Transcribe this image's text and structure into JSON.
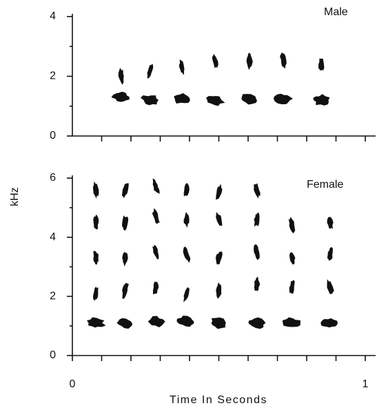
{
  "chart_data": [
    {
      "type": "spectrogram",
      "title": "Male",
      "ylabel": "kHz",
      "xlim": [
        0,
        1
      ],
      "ylim": [
        0,
        4
      ],
      "yticks": [
        0,
        2,
        4
      ],
      "yminor_ticks": [
        1,
        3
      ],
      "xminor_ticks": [
        0.1,
        0.2,
        0.3,
        0.4,
        0.5,
        0.6,
        0.7,
        0.8,
        0.9,
        1
      ],
      "x": [
        0.167,
        0.266,
        0.374,
        0.487,
        0.605,
        0.72,
        0.85
      ],
      "series": [
        {
          "color": "#111111",
          "values": [
            1.3,
            1.2,
            1.25,
            1.2,
            1.25,
            1.25,
            1.2
          ]
        },
        {
          "color": "#111111",
          "values": [
            2.0,
            2.2,
            2.3,
            2.5,
            2.5,
            2.55,
            2.4
          ]
        }
      ]
    },
    {
      "type": "spectrogram",
      "title": "Female",
      "xlabel": "Time In Seconds",
      "xlim": [
        0,
        1
      ],
      "ylim": [
        0,
        6
      ],
      "yticks": [
        0,
        2,
        4,
        6
      ],
      "yminor_ticks": [
        1,
        3,
        5
      ],
      "xticks": [
        0,
        1
      ],
      "xminor_ticks": [
        0.1,
        0.2,
        0.3,
        0.4,
        0.5,
        0.6,
        0.7,
        0.8,
        0.9
      ],
      "x": [
        0.08,
        0.18,
        0.285,
        0.39,
        0.5,
        0.63,
        0.75,
        0.88
      ],
      "series": [
        {
          "color": "#111111",
          "values": [
            1.1,
            1.1,
            1.15,
            1.15,
            1.1,
            1.1,
            1.1,
            1.1
          ]
        },
        {
          "color": "#111111",
          "values": [
            2.1,
            2.2,
            2.3,
            2.1,
            2.2,
            2.4,
            2.3,
            2.3
          ]
        },
        {
          "color": "#111111",
          "values": [
            3.3,
            3.3,
            3.5,
            3.4,
            3.3,
            3.5,
            3.3,
            3.4
          ]
        },
        {
          "color": "#111111",
          "values": [
            4.5,
            4.5,
            4.7,
            4.6,
            4.6,
            4.6,
            4.4,
            4.5
          ]
        },
        {
          "color": "#111111",
          "values": [
            5.6,
            5.6,
            5.7,
            5.6,
            5.5,
            5.6,
            null,
            null
          ]
        }
      ]
    }
  ]
}
